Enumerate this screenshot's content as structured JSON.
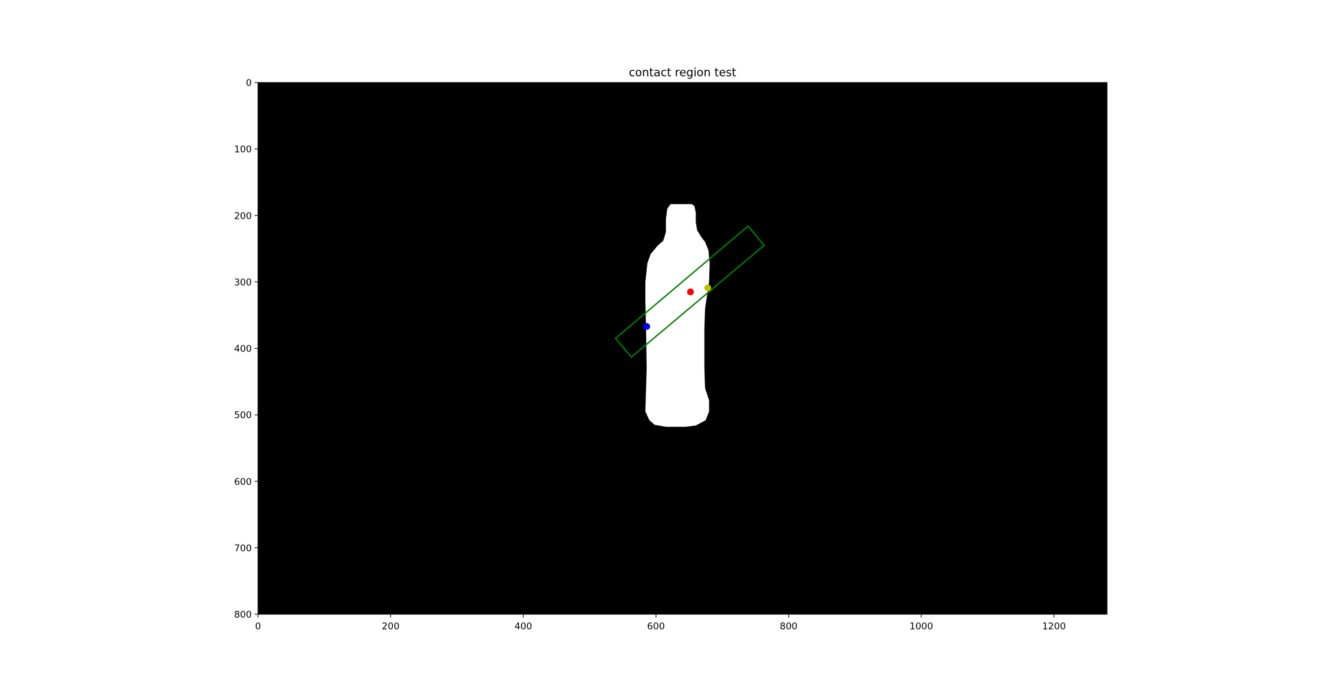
{
  "chart_data": {
    "type": "image",
    "title": "contact region test",
    "xlabel": "",
    "ylabel": "",
    "xlim": [
      0,
      1280
    ],
    "ylim": [
      800,
      0
    ],
    "y_inverted": true,
    "xticks": [
      0,
      200,
      400,
      600,
      800,
      1000,
      1200
    ],
    "yticks": [
      0,
      100,
      200,
      300,
      400,
      500,
      600,
      700,
      800
    ],
    "grid": false,
    "background_color": "#000000",
    "mask_color": "#ffffff",
    "mask_outline": [
      [
        622,
        183
      ],
      [
        654,
        183
      ],
      [
        658,
        186
      ],
      [
        660,
        196
      ],
      [
        660,
        210
      ],
      [
        662,
        222
      ],
      [
        668,
        232
      ],
      [
        674,
        240
      ],
      [
        679,
        252
      ],
      [
        681,
        272
      ],
      [
        680,
        300
      ],
      [
        677,
        320
      ],
      [
        674,
        340
      ],
      [
        673,
        370
      ],
      [
        673,
        430
      ],
      [
        674,
        460
      ],
      [
        680,
        478
      ],
      [
        680,
        495
      ],
      [
        675,
        508
      ],
      [
        660,
        516
      ],
      [
        645,
        518
      ],
      [
        615,
        518
      ],
      [
        598,
        515
      ],
      [
        590,
        508
      ],
      [
        584,
        495
      ],
      [
        585,
        460
      ],
      [
        586,
        430
      ],
      [
        585,
        370
      ],
      [
        584,
        330
      ],
      [
        584,
        300
      ],
      [
        587,
        272
      ],
      [
        592,
        258
      ],
      [
        603,
        245
      ],
      [
        611,
        238
      ],
      [
        615,
        225
      ],
      [
        615,
        205
      ],
      [
        617,
        190
      ]
    ],
    "rectangle": {
      "color": "#008000",
      "corners": [
        [
          739,
          216
        ],
        [
          763,
          245
        ],
        [
          563,
          413
        ],
        [
          539,
          385
        ]
      ]
    },
    "points": [
      {
        "color": "#0000ff",
        "x": 586,
        "y": 367
      },
      {
        "color": "#ff0000",
        "x": 652,
        "y": 315
      },
      {
        "color": "#bfbf00",
        "x": 678,
        "y": 309
      }
    ]
  }
}
